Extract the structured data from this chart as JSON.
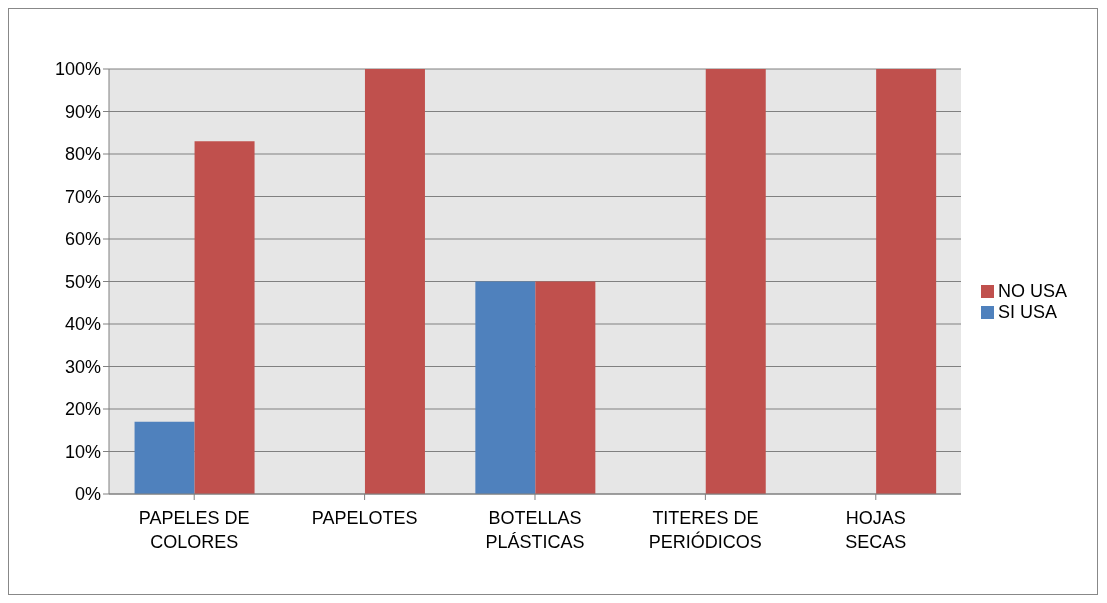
{
  "chart_data": {
    "type": "bar",
    "categories": [
      "PAPELES DE COLORES",
      "PAPELOTES",
      "BOTELLAS PLÁSTICAS",
      "TITERES DE PERIÓDICOS",
      "HOJAS SECAS"
    ],
    "series": [
      {
        "name": "SI USA",
        "color": "#4f81bd",
        "values": [
          17,
          0,
          50,
          0,
          0
        ]
      },
      {
        "name": "NO USA",
        "color": "#c0504d",
        "values": [
          83,
          100,
          50,
          100,
          100
        ]
      }
    ],
    "ylim": [
      0,
      100
    ],
    "yticks": [
      {
        "value": 0,
        "label": "0%"
      },
      {
        "value": 10,
        "label": "10%"
      },
      {
        "value": 20,
        "label": "20%"
      },
      {
        "value": 30,
        "label": "30%"
      },
      {
        "value": 40,
        "label": "40%"
      },
      {
        "value": 50,
        "label": "50%"
      },
      {
        "value": 60,
        "label": "60%"
      },
      {
        "value": 70,
        "label": "70%"
      },
      {
        "value": 80,
        "label": "80%"
      },
      {
        "value": 90,
        "label": "90%"
      },
      {
        "value": 100,
        "label": "100%"
      }
    ],
    "grid": "y",
    "legend": "right"
  }
}
